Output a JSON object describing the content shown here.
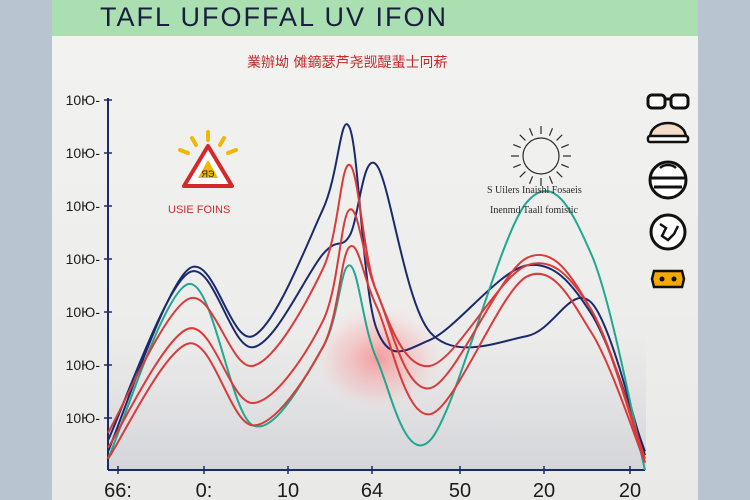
{
  "chart_data": {
    "type": "line",
    "title": "TAFL UFOFFAL UV IFON",
    "subtitle": "業辦坳 傩鏑瑟芦尧觊醍蜚士冋菥",
    "ytick_labels": [
      "10Ю-",
      "10Ю-",
      "10Ю-",
      "10Ю-",
      "10Ю-",
      "10Ю-",
      "10Ю-"
    ],
    "xtick_labels": [
      "66:",
      "0:",
      "10",
      "64",
      "50",
      "20",
      "20"
    ],
    "xlim": [
      0,
      100
    ],
    "ylim": [
      0,
      100
    ],
    "x": [
      0,
      15,
      27,
      40,
      45,
      50,
      60,
      78,
      90,
      100
    ],
    "series": [
      {
        "color": "#1b2a6b",
        "values": [
          5,
          54,
          36,
          70,
          92,
          38,
          35,
          55,
          42,
          5
        ]
      },
      {
        "color": "#1b2a6b",
        "values": [
          8,
          53,
          33,
          58,
          63,
          82,
          37,
          36,
          45,
          4
        ]
      },
      {
        "color": "#21a68f",
        "values": [
          3,
          50,
          12,
          33,
          55,
          30,
          8,
          72,
          58,
          0
        ]
      },
      {
        "color": "#d93a3a",
        "values": [
          10,
          46,
          28,
          54,
          82,
          48,
          28,
          55,
          43,
          3
        ]
      },
      {
        "color": "#d93a3a",
        "values": [
          6,
          38,
          18,
          40,
          70,
          48,
          22,
          57,
          43,
          2
        ]
      },
      {
        "color": "#d93a3a",
        "values": [
          3,
          34,
          12,
          33,
          60,
          44,
          15,
          52,
          37,
          2
        ]
      }
    ],
    "grid": false,
    "legend": "right"
  },
  "callouts": {
    "left": {
      "label": "USIE FOINS",
      "color": "#d62828"
    },
    "right": {
      "line1": "S Uilers Inaishl Fosaeis",
      "line2": "Inenmd Taall fomistic",
      "color": "#2b2b2b"
    }
  },
  "legend_icons": [
    "glasses-icon",
    "hat-icon",
    "head-icon",
    "globe-icon",
    "badge-icon"
  ],
  "colors": {
    "navy": "#1b2a6b",
    "teal": "#21a68f",
    "red": "#d93a3a",
    "banner": "#a9dfb1"
  }
}
